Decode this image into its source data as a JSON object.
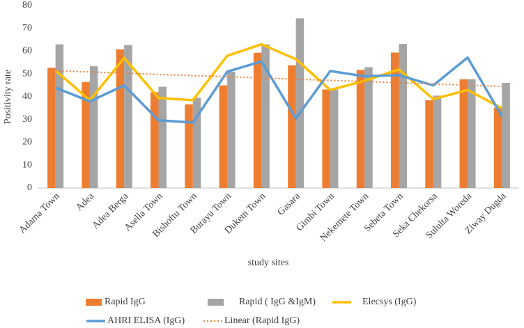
{
  "chart_data": {
    "type": "bar",
    "x_label": "study sites",
    "y_label": "Positivity rate",
    "categories": [
      "Adama Town",
      "Adea",
      "Adea Berga",
      "Asella Town",
      "Bishoftu Town",
      "Burayu Town",
      "Dukem Town",
      "Gasara",
      "Gimbi Town",
      "Nekemete Town",
      "Sebeta Town",
      "Seka Chekorsa",
      "Sululta Woreda",
      "Ziway Dugda"
    ],
    "series": [
      {
        "name": "Rapid IgG",
        "color": "#ed7d31",
        "mark": "bar",
        "values": [
          52.7,
          46.5,
          60.8,
          42,
          36.7,
          45,
          59.3,
          53.8,
          43.2,
          51.8,
          59.4,
          38.5,
          47.7,
          35.2
        ]
      },
      {
        "name": "Rapid ( IgG &IgM)",
        "color": "#a5a5a5",
        "mark": "bar",
        "values": [
          63,
          53.4,
          62.7,
          44.4,
          39.6,
          51,
          63,
          74.4,
          43.2,
          53,
          63.2,
          40.5,
          47.7,
          46.1
        ]
      },
      {
        "name": "Elecsys (IgG)",
        "color": "#ffc000",
        "mark": "line",
        "values": [
          51.5,
          38.5,
          57,
          39.5,
          38.5,
          58,
          63,
          56.5,
          43,
          47,
          52,
          39,
          43,
          35
        ]
      },
      {
        "name": "AHRI ELISA (IgG)",
        "color": "#5b9bd5",
        "mark": "line",
        "values": [
          44,
          38,
          45,
          29.7,
          28.7,
          51,
          55.5,
          30.5,
          51.3,
          49,
          49.5,
          45,
          57.2,
          31.5
        ]
      },
      {
        "name": "Linear (Rapid IgG)",
        "color": "#ed7d31",
        "mark": "dotted",
        "values": [
          51.4,
          50.9,
          50.4,
          49.8,
          49.3,
          48.8,
          48.3,
          47.7,
          47.2,
          46.7,
          46.2,
          45.6,
          45.1,
          44.6
        ]
      }
    ],
    "ylim": [
      0,
      80
    ],
    "yticks": [
      0,
      10,
      20,
      30,
      40,
      50,
      60,
      70,
      80
    ],
    "grid": false,
    "legend": "bottom"
  }
}
